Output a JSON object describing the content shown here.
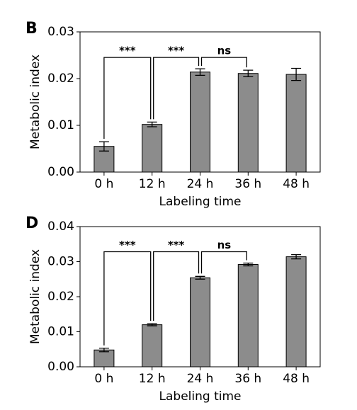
{
  "chart_data": [
    {
      "type": "bar",
      "panel_label": "B",
      "x_label": "Labeling time",
      "y_label": "Metabolic index",
      "categories": [
        "0 h",
        "12 h",
        "24 h",
        "36 h",
        "48 h"
      ],
      "values": [
        0.0055,
        0.0102,
        0.0214,
        0.0211,
        0.0209
      ],
      "errors": [
        0.001,
        0.0005,
        0.0007,
        0.0007,
        0.0013
      ],
      "color": "#8c8c8c",
      "ylim": [
        0,
        0.03
      ],
      "yticks": [
        {
          "value": 0,
          "label": "0.00"
        },
        0.01,
        0.02,
        0.03
      ],
      "annotations": [
        "***",
        "***",
        "ns"
      ]
    },
    {
      "type": "bar",
      "panel_label": "D",
      "x_label": "Labeling time",
      "y_label": "Metabolic index",
      "categories": [
        "0 h",
        "12 h",
        "24 h",
        "36 h",
        "48 h"
      ],
      "values": [
        0.0048,
        0.012,
        0.0254,
        0.0292,
        0.0314
      ],
      "errors": [
        0.0005,
        0.0003,
        0.0004,
        0.0004,
        0.0006
      ],
      "color": "#8c8c8c",
      "ylim": [
        0,
        0.04
      ],
      "yticks": [
        {
          "value": 0,
          "label": "0.00"
        },
        0.01,
        0.02,
        0.03,
        0.04
      ],
      "annotations": [
        "***",
        "***",
        "ns"
      ]
    }
  ]
}
